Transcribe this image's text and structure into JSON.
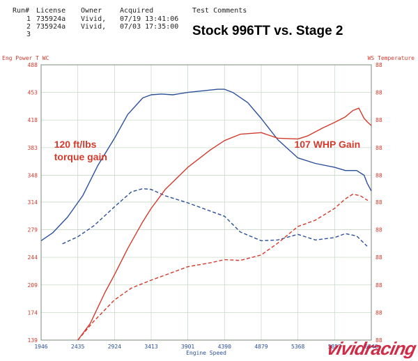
{
  "header": {
    "columns": [
      "Run#",
      "License",
      "Owner",
      "Acquired",
      "Test Comments"
    ],
    "rows": [
      {
        "run": "1",
        "license": "735924a",
        "owner": "Vivid,",
        "acquired": "07/19 13:41:06"
      },
      {
        "run": "2",
        "license": "735924a",
        "owner": "Vivid,",
        "acquired": "07/03 17:35:00"
      },
      {
        "run": "3",
        "license": "",
        "owner": "",
        "acquired": ""
      }
    ],
    "title": "Stock 996TT vs. Stage 2"
  },
  "watermark": "vividracing",
  "colors": {
    "torque": "#2b4f9a",
    "power": "#d33a2c",
    "grid": "#c9d9c9",
    "left_axis": "#d33a2c",
    "right_axis": "#d33a2c"
  },
  "chart_data": {
    "type": "line",
    "ylabel_left": "Eng Power T WC",
    "ylabel_right": "WS Temperature",
    "xlabel": "Engine Speed",
    "x_ticks": [
      1946,
      2435,
      2924,
      3413,
      3901,
      4390,
      4879,
      5368,
      5857,
      6346
    ],
    "y_ticks_left": [
      139,
      174,
      209,
      244,
      279,
      314,
      348,
      383,
      418,
      453,
      488
    ],
    "y_ticks_right": [
      "88",
      "88",
      "88",
      "88",
      "88",
      "88",
      "88",
      "88",
      "88",
      "88",
      "88"
    ],
    "xlim": [
      1946,
      6346
    ],
    "ylim": [
      139,
      488
    ],
    "grid": true,
    "annotations": [
      {
        "text": "120 ft/lbs torque gain",
        "lines": [
          "120 ft/lbs",
          "torque gain"
        ],
        "x": 2120,
        "y": 383,
        "color": "#d33a2c"
      },
      {
        "text": "107 WHP Gain",
        "lines": [
          "107 WHP Gain"
        ],
        "x": 5320,
        "y": 383,
        "color": "#d33a2c"
      }
    ],
    "series": [
      {
        "color": "#2b4f9a",
        "style": "solid",
        "x": [
          1946,
          2100,
          2300,
          2500,
          2700,
          2924,
          3100,
          3300,
          3413,
          3550,
          3700,
          3901,
          4100,
          4300,
          4390,
          4500,
          4700,
          4879,
          5100,
          5368,
          5600,
          5857,
          6000,
          6150,
          6250,
          6290,
          6346
        ],
        "y": [
          265,
          275,
          295,
          322,
          360,
          395,
          425,
          446,
          450,
          451,
          450,
          453,
          455,
          457,
          457,
          453,
          440,
          420,
          393,
          370,
          363,
          358,
          354,
          354,
          348,
          338,
          328
        ]
      },
      {
        "color": "#2b4f9a",
        "style": "dashed",
        "x": [
          2230,
          2435,
          2650,
          2924,
          3150,
          3300,
          3413,
          3600,
          3901,
          4390,
          4600,
          4879,
          5100,
          5368,
          5600,
          5857,
          6000,
          6150,
          6290
        ],
        "y": [
          261,
          270,
          284,
          308,
          327,
          331,
          330,
          322,
          313,
          296,
          276,
          265,
          266,
          273,
          266,
          269,
          274,
          271,
          258
        ]
      },
      {
        "color": "#d33a2c",
        "style": "solid",
        "x": [
          2435,
          2600,
          2800,
          2924,
          3100,
          3300,
          3413,
          3600,
          3901,
          4200,
          4390,
          4600,
          4879,
          5100,
          5368,
          5500,
          5700,
          5857,
          6000,
          6100,
          6180,
          6250,
          6300,
          6346
        ],
        "y": [
          139,
          160,
          200,
          222,
          255,
          289,
          306,
          330,
          358,
          380,
          392,
          400,
          402,
          395,
          394,
          398,
          408,
          415,
          422,
          430,
          433,
          420,
          415,
          411
        ]
      },
      {
        "color": "#d33a2c",
        "style": "dashed",
        "x": [
          2435,
          2650,
          2924,
          3150,
          3413,
          3700,
          3901,
          4200,
          4390,
          4600,
          4879,
          5100,
          5368,
          5600,
          5857,
          6000,
          6100,
          6200,
          6300
        ],
        "y": [
          139,
          163,
          190,
          205,
          215,
          225,
          232,
          237,
          241,
          240,
          247,
          262,
          283,
          291,
          306,
          318,
          324,
          322,
          316
        ]
      }
    ]
  }
}
